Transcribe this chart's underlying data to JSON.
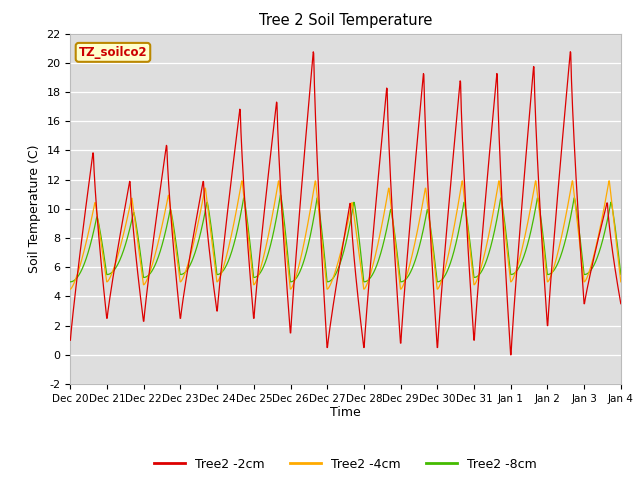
{
  "title": "Tree 2 Soil Temperature",
  "xlabel": "Time",
  "ylabel": "Soil Temperature (C)",
  "ylim": [
    -2,
    22
  ],
  "yticks": [
    -2,
    0,
    2,
    4,
    6,
    8,
    10,
    12,
    14,
    16,
    18,
    20,
    22
  ],
  "x_labels": [
    "Dec 20",
    "Dec 21",
    "Dec 22",
    "Dec 23",
    "Dec 24",
    "Dec 25",
    "Dec 26",
    "Dec 27",
    "Dec 28",
    "Dec 29",
    "Dec 30",
    "Dec 31",
    "Jan 1",
    "Jan 2",
    "Jan 3",
    "Jan 4"
  ],
  "annotation_text": "TZ_soilco2",
  "annotation_color": "#cc0000",
  "annotation_bg": "#ffffcc",
  "annotation_border": "#bb8800",
  "legend_labels": [
    "Tree2 -2cm",
    "Tree2 -4cm",
    "Tree2 -8cm"
  ],
  "legend_colors": [
    "#dd0000",
    "#ffaa00",
    "#44bb00"
  ],
  "line_color_2cm": "#dd0000",
  "line_color_4cm": "#ffaa00",
  "line_color_8cm": "#44bb00",
  "bg_color": "#dedede",
  "fig_color": "#ffffff",
  "peak_heights_2cm": [
    14.0,
    12.0,
    14.5,
    12.0,
    17.0,
    17.5,
    21.0,
    10.5,
    18.5,
    19.5,
    19.0,
    19.5,
    20.0,
    21.0,
    10.5
  ],
  "trough_depths_2cm": [
    1.0,
    2.5,
    2.3,
    2.5,
    3.0,
    2.5,
    1.5,
    0.5,
    0.5,
    0.8,
    0.5,
    1.0,
    0.0,
    2.0,
    3.5
  ],
  "peak_heights_4cm": [
    10.5,
    10.8,
    11.0,
    11.5,
    12.0,
    12.0,
    12.0,
    10.5,
    11.5,
    11.5,
    12.0,
    12.0,
    12.0,
    12.0,
    12.0
  ],
  "trough_depths_4cm": [
    4.5,
    5.0,
    4.8,
    5.0,
    5.0,
    4.8,
    4.5,
    4.5,
    4.5,
    4.5,
    4.5,
    4.8,
    5.0,
    5.0,
    5.0
  ],
  "peak_heights_8cm": [
    9.5,
    9.8,
    10.0,
    10.5,
    10.8,
    11.0,
    10.8,
    10.5,
    10.0,
    10.0,
    10.5,
    10.8,
    10.8,
    10.8,
    10.5
  ],
  "trough_depths_8cm": [
    5.0,
    5.5,
    5.3,
    5.5,
    5.5,
    5.3,
    5.0,
    5.0,
    5.0,
    5.0,
    5.0,
    5.3,
    5.5,
    5.5,
    5.5
  ]
}
